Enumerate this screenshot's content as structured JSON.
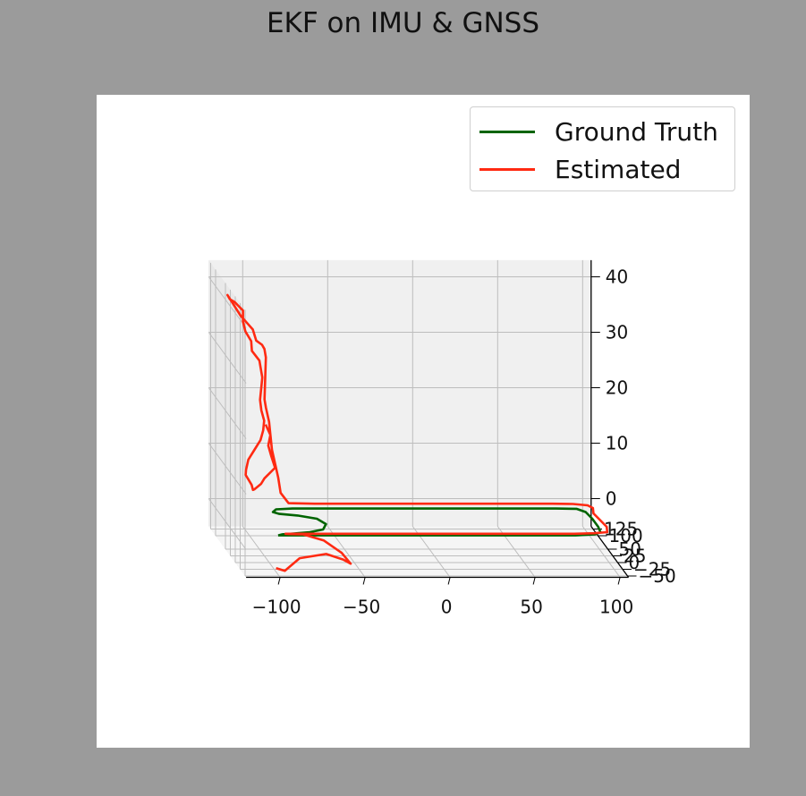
{
  "title": "EKF on IMU & GNSS",
  "legend": {
    "ground_truth": "Ground Truth",
    "estimated": "Estimated"
  },
  "colors": {
    "ground_truth": "#006400",
    "estimated": "#ff2a12",
    "pane": "#f0f0f0",
    "grid": "#bdbdbd"
  },
  "chart_data": {
    "type": "line",
    "projection": "3d",
    "title": "EKF on IMU & GNSS",
    "xlabel": "",
    "ylabel": "",
    "zlabel": "",
    "grid": true,
    "legend_position": "top-right",
    "x_ticks": [
      "−100",
      "−50",
      "0",
      "50",
      "100"
    ],
    "y_ticks": [
      "−50",
      "−25",
      "0",
      "25",
      "50",
      "100",
      "125"
    ],
    "z_ticks": [
      "0",
      "10",
      "20",
      "30",
      "40"
    ],
    "xlim": [
      -120,
      105
    ],
    "ylim": [
      -55,
      135
    ],
    "zlim": [
      -5,
      43
    ],
    "series": [
      {
        "name": "Ground Truth",
        "x": [
          -95,
          -80,
          -60,
          -40,
          -20,
          0,
          20,
          40,
          60,
          80,
          92,
          96,
          97,
          97,
          96,
          92,
          80,
          60,
          40,
          20,
          0,
          -20,
          -40,
          -60,
          -75,
          -85,
          -88,
          -85,
          -75,
          -65,
          -62,
          -66,
          -75,
          -85,
          -92,
          -95
        ],
        "y": [
          -2,
          -2,
          -2,
          -2,
          -2,
          -2,
          -2,
          -2,
          -2,
          -2,
          2,
          10,
          30,
          60,
          85,
          97,
          98,
          98,
          98,
          98,
          98,
          98,
          98,
          98,
          98,
          95,
          85,
          78,
          72,
          60,
          40,
          20,
          10,
          5,
          2,
          -2
        ],
        "z": [
          0,
          0,
          0,
          0,
          0,
          0,
          0,
          0,
          0,
          0,
          0,
          0,
          0,
          0,
          0,
          0,
          0,
          0,
          0,
          0,
          0,
          0,
          0,
          0,
          0,
          0,
          0,
          0,
          0,
          0,
          0,
          0,
          0,
          0,
          0,
          0
        ]
      },
      {
        "name": "Estimated",
        "x": [
          -96,
          -92,
          -85,
          -70,
          -60,
          -55,
          -58,
          -68,
          -80,
          -88,
          -90,
          -80,
          -60,
          -40,
          -20,
          0,
          20,
          40,
          60,
          80,
          92,
          100,
          102,
          101,
          100,
          102,
          100,
          92,
          80,
          60,
          40,
          20,
          0,
          -20,
          -40,
          -60,
          -75,
          -80,
          -82,
          -85,
          -88,
          -90,
          -92,
          -95,
          -97,
          -98,
          -99,
          -100,
          -101,
          -102,
          -104,
          -106,
          -110,
          -112,
          -115,
          -118,
          -120,
          -122,
          -124,
          -122,
          -118,
          -115,
          -112,
          -112,
          -110,
          -106,
          -105,
          -100,
          -98,
          -96,
          -95,
          -95,
          -95,
          -94,
          -92,
          -92,
          -93,
          -96,
          -99,
          -100,
          -100,
          -98,
          -96,
          -95,
          -94,
          -90,
          -88,
          -82,
          -84,
          -86,
          -85,
          -88
        ],
        "y": [
          0,
          -10,
          -25,
          -30,
          -30,
          -25,
          -5,
          0,
          2,
          3,
          4,
          4,
          4,
          4,
          4,
          4,
          4,
          4,
          4,
          4,
          6,
          10,
          30,
          55,
          80,
          100,
          110,
          115,
          116,
          116,
          116,
          116,
          116,
          116,
          116,
          116,
          118,
          115,
          110,
          100,
          90,
          80,
          70,
          60,
          50,
          40,
          30,
          20,
          10,
          0,
          -10,
          -15,
          -20,
          -20,
          -15,
          -10,
          -5,
          0,
          5,
          10,
          20,
          25,
          30,
          30,
          35,
          40,
          45,
          50,
          60,
          70,
          80,
          85,
          90,
          92,
          95,
          100,
          105,
          110,
          115,
          118,
          120,
          122,
          124,
          126,
          128,
          128,
          128,
          126,
          128,
          126,
          124,
          122
        ],
        "z": [
          -6,
          -6,
          -3,
          -2,
          -3,
          -4,
          -3,
          -1,
          0,
          0,
          0,
          0,
          0,
          0,
          0,
          0,
          0,
          0,
          0,
          0,
          0,
          0,
          0,
          0,
          0,
          0,
          0,
          0,
          0,
          0,
          0,
          0,
          0,
          0,
          0,
          0,
          0,
          2,
          5,
          8,
          11,
          14,
          17,
          20,
          22,
          24,
          26,
          28,
          30,
          32,
          34,
          35,
          36,
          38,
          39,
          40,
          41,
          42,
          43,
          42,
          41,
          40,
          39,
          37,
          35,
          33,
          31,
          29,
          27,
          25,
          24,
          22,
          20,
          18,
          16,
          14,
          12,
          10,
          8,
          6,
          5,
          4,
          3,
          2,
          2,
          3,
          4,
          6,
          8,
          10,
          12,
          14
        ]
      }
    ]
  }
}
